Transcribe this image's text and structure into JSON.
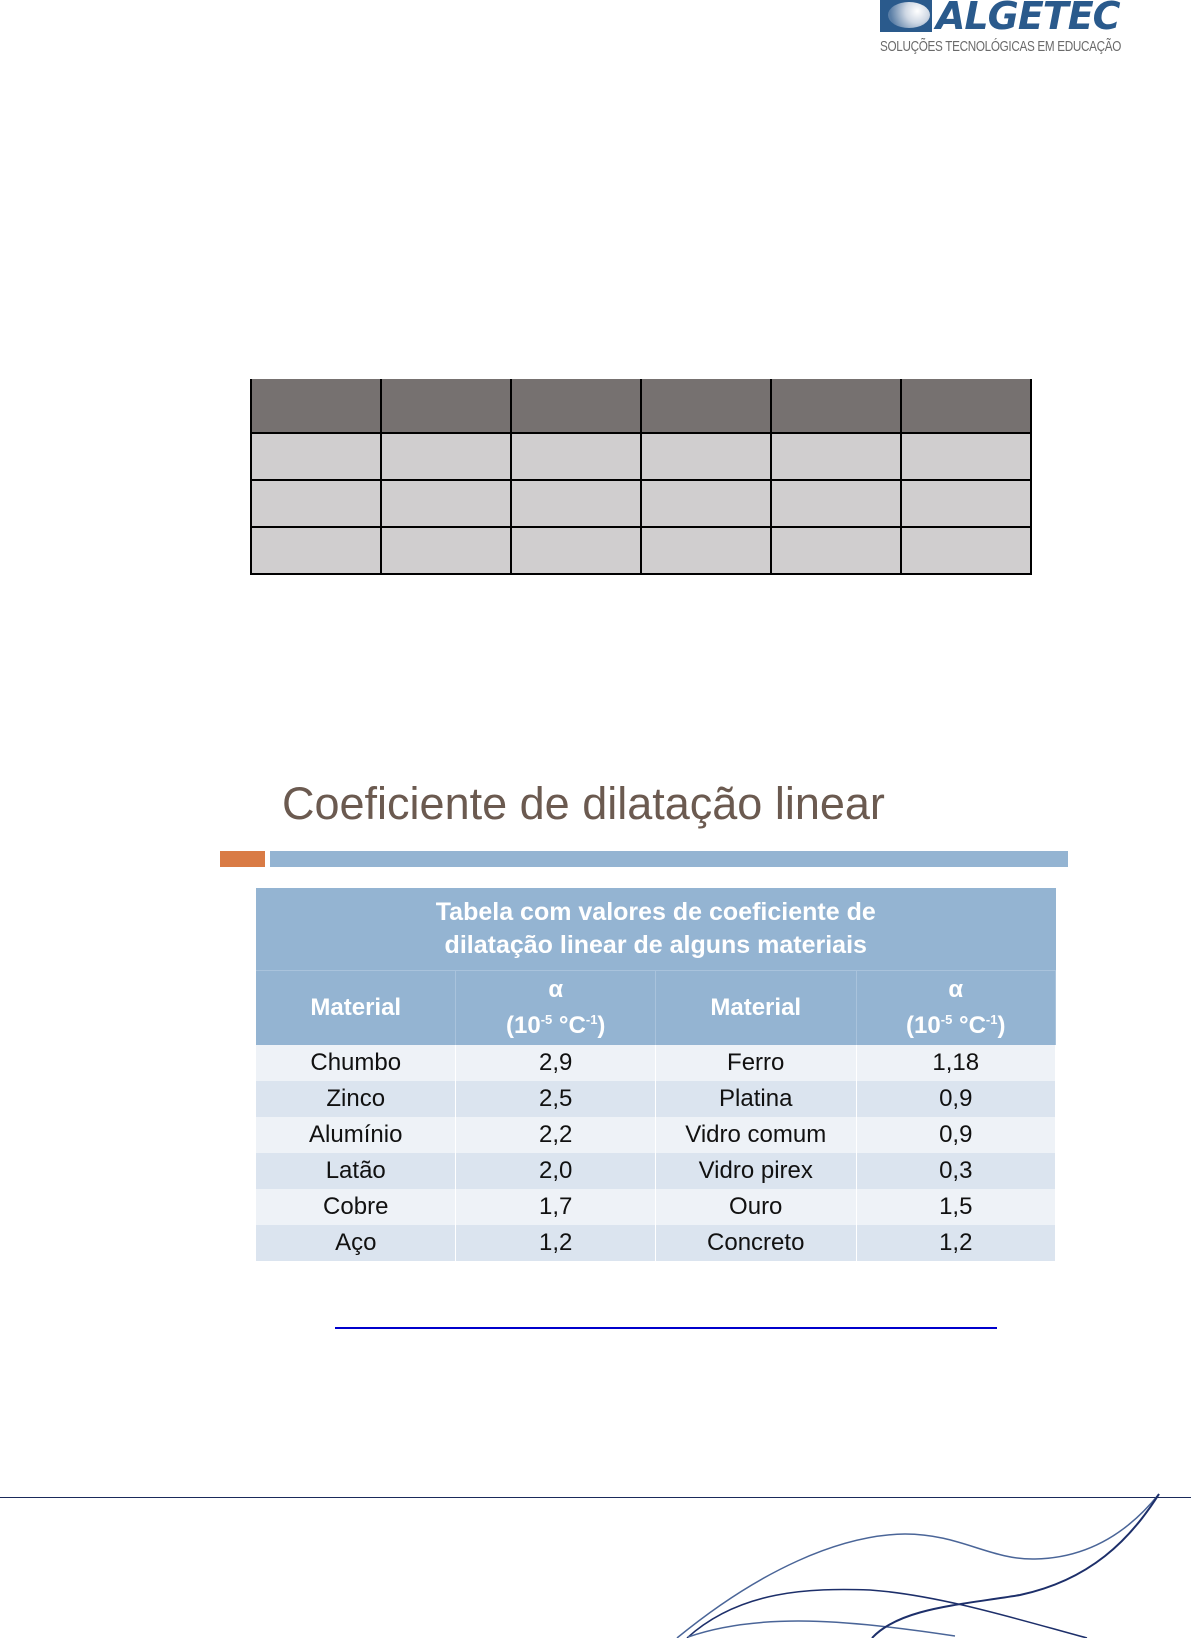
{
  "header": {
    "logo": {
      "name": "ALGETEC",
      "tagline": "SOLUÇÕES TECNOLÓGICAS EM EDUCAÇÃO",
      "color": "#2a5a8c"
    }
  },
  "empty_table": {
    "rows": 3,
    "columns": 6,
    "header_color": "#767170",
    "cell_color": "#d0cecf"
  },
  "figure": {
    "title": "Coeficiente de dilatação linear",
    "accent_colors": {
      "orange": "#d97b45",
      "blue": "#94b4d2"
    },
    "table": {
      "caption_line1": "Tabela com valores de coeficiente de",
      "caption_line2": "dilatação linear de alguns materiais",
      "headers": [
        {
          "label": "Material"
        },
        {
          "symbol": "α",
          "unit": "(10",
          "exp1": "-5",
          "unit2": " °C",
          "exp2": "-1",
          "close": ")"
        },
        {
          "label": "Material"
        },
        {
          "symbol": "α",
          "unit": "(10",
          "exp1": "-5",
          "unit2": " °C",
          "exp2": "-1",
          "close": ")"
        }
      ],
      "rows": [
        [
          "Chumbo",
          "2,9",
          "Ferro",
          "1,18"
        ],
        [
          "Zinco",
          "2,5",
          "Platina",
          "0,9"
        ],
        [
          "Alumínio",
          "2,2",
          "Vidro comum",
          "0,9"
        ],
        [
          "Latão",
          "2,0",
          "Vidro pirex",
          "0,3"
        ],
        [
          "Cobre",
          "1,7",
          "Ouro",
          "1,5"
        ],
        [
          "Aço",
          "1,2",
          "Concreto",
          "1,2"
        ]
      ]
    }
  },
  "link": {
    "color": "#0000cc"
  }
}
